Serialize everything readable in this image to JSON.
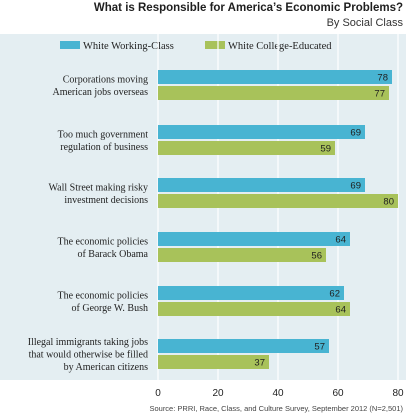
{
  "title": "What is Responsible for America’s Economic Problems?",
  "subtitle": "By Social Class",
  "source": "Source: PRRI, Race, Class, and Culture Survey, September 2012 (N=2,501)",
  "colors": {
    "background": "#e4eef2",
    "white_working_class": "#48b4d2",
    "white_college_educated": "#a8c25a",
    "grid": "#ffffff",
    "text": "#1f1f1f"
  },
  "chart_data": {
    "type": "bar",
    "orientation": "horizontal",
    "title": "What is Responsible for America’s Economic Problems?",
    "subtitle": "By Social Class",
    "categories": [
      [
        "Corporations moving",
        "American jobs overseas"
      ],
      [
        "Too much government",
        "regulation of business"
      ],
      [
        "Wall Street making risky",
        "investment decisions"
      ],
      [
        "The economic policies",
        "of Barack Obama"
      ],
      [
        "The economic policies",
        "of George W. Bush"
      ],
      [
        "Illegal immigrants taking jobs",
        "that would otherwise be filled",
        "by American citizens"
      ]
    ],
    "series": [
      {
        "name": "White Working-Class",
        "values": [
          78,
          69,
          69,
          64,
          62,
          57
        ]
      },
      {
        "name": "White College-Educated",
        "values": [
          77,
          59,
          80,
          56,
          64,
          37
        ]
      }
    ],
    "xlim": [
      0,
      80
    ],
    "xticks": [
      0,
      20,
      40,
      60,
      80
    ],
    "legend": "top",
    "grid": true
  }
}
